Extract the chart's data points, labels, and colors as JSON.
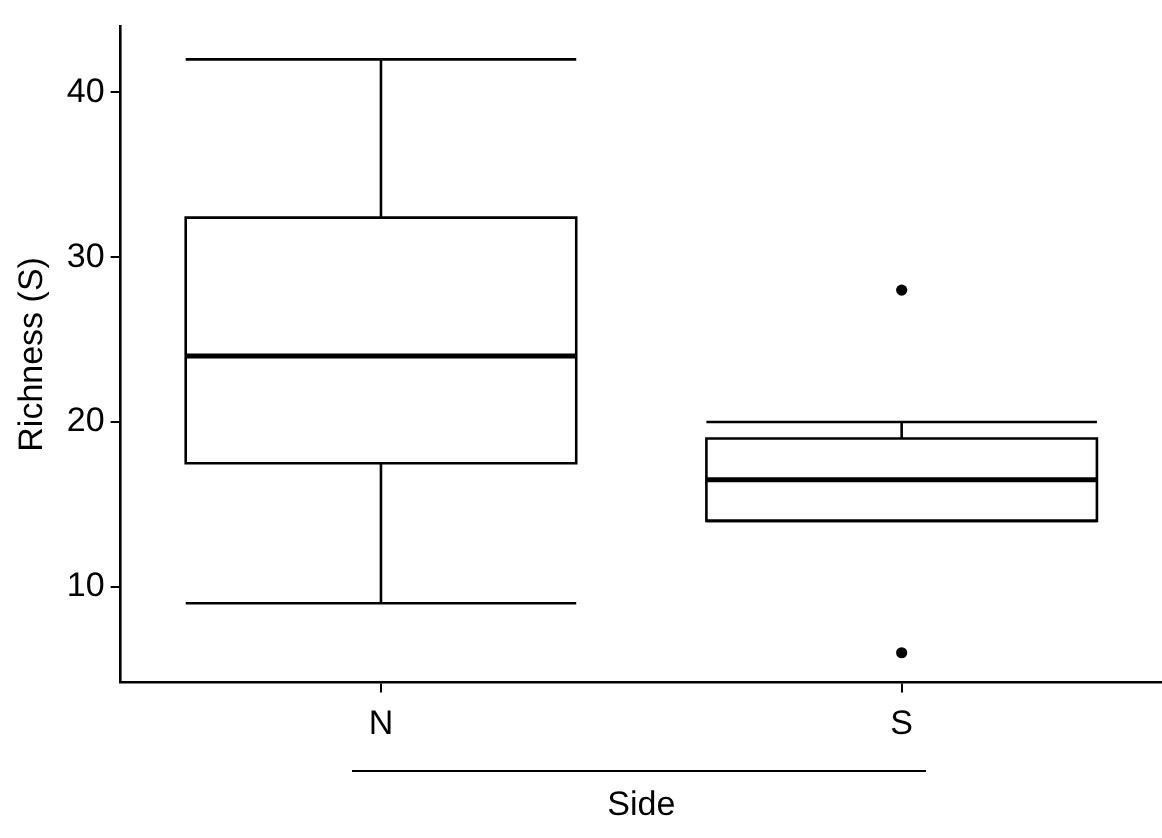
{
  "chart_data": {
    "type": "box",
    "xlabel": "Side",
    "ylabel": "Richness (S)",
    "categories": [
      "N",
      "S"
    ],
    "boxes": [
      {
        "low": 9,
        "q1": 17.5,
        "median": 24,
        "q3": 32.4,
        "high": 42
      },
      {
        "low": 14,
        "q1": 14,
        "median": 16.5,
        "q3": 19,
        "high": 20,
        "outliers": [
          28,
          6
        ]
      }
    ],
    "color": "#000000",
    "ylim": [
      4.2,
      44
    ],
    "yticks": [
      10,
      20,
      30,
      40
    ],
    "grid": false,
    "legend": false
  }
}
